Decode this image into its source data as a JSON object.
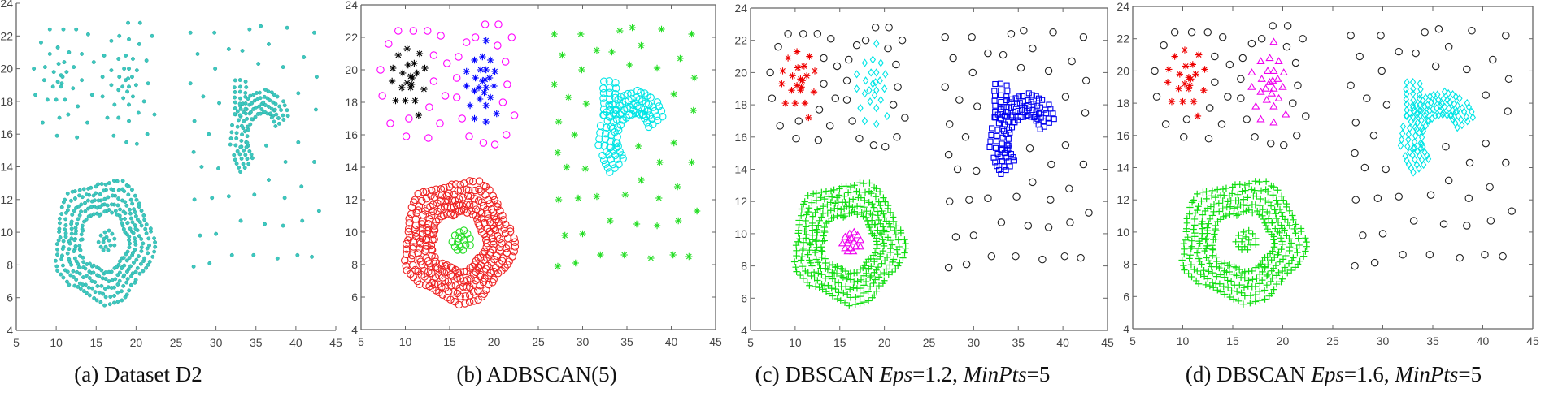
{
  "chart_data": [
    {
      "type": "scatter",
      "caption": {
        "prefix": "(a) Dataset D2"
      },
      "xlim": [
        5,
        45
      ],
      "ylim": [
        4,
        24
      ],
      "xticks": [
        5,
        10,
        15,
        20,
        25,
        30,
        35,
        40,
        45
      ],
      "yticks": [
        4,
        6,
        8,
        10,
        12,
        14,
        16,
        18,
        20,
        22,
        24
      ],
      "box": false,
      "styles": {
        "noise_left": {
          "marker": "dot",
          "color": "#3cc8bf"
        },
        "noise_right": {
          "marker": "dot",
          "color": "#3cc8bf"
        },
        "core_left": {
          "marker": "dot",
          "color": "#3cc8bf"
        },
        "core_right": {
          "marker": "dot",
          "color": "#3cc8bf"
        },
        "crescent": {
          "marker": "dot",
          "color": "#3cc8bf"
        },
        "ring": {
          "marker": "dot",
          "color": "#3cc8bf"
        },
        "ring_core": {
          "marker": "dot",
          "color": "#3cc8bf"
        }
      }
    },
    {
      "type": "scatter",
      "caption": {
        "prefix": "(b) ADBSCAN(5)"
      },
      "xlim": [
        5,
        45
      ],
      "ylim": [
        4,
        24
      ],
      "xticks": [
        5,
        10,
        15,
        20,
        25,
        30,
        35,
        40,
        45
      ],
      "yticks": [
        4,
        6,
        8,
        10,
        12,
        14,
        16,
        18,
        20,
        22,
        24
      ],
      "box": true,
      "styles": {
        "noise_left": {
          "marker": "circle",
          "color": "#ff00ff"
        },
        "noise_right": {
          "marker": "star",
          "color": "#22dd22"
        },
        "core_left": {
          "marker": "star",
          "color": "#000000"
        },
        "core_right": {
          "marker": "star",
          "color": "#0000ff"
        },
        "crescent": {
          "marker": "circle",
          "color": "#00e5e5"
        },
        "ring": {
          "marker": "circle",
          "color": "#ee2222"
        },
        "ring_core": {
          "marker": "circle",
          "color": "#22dd22"
        }
      }
    },
    {
      "type": "scatter",
      "caption": {
        "prefix": "(c) DBSCAN ",
        "eps_label": "Eps",
        "eps_value": "=1.2, ",
        "minpts_label": "MinPts",
        "minpts_value": "=5"
      },
      "xlim": [
        5,
        45
      ],
      "ylim": [
        4,
        24
      ],
      "xticks": [
        5,
        10,
        15,
        20,
        25,
        30,
        35,
        40,
        45
      ],
      "yticks": [
        4,
        6,
        8,
        10,
        12,
        14,
        16,
        18,
        20,
        22,
        24
      ],
      "box": true,
      "styles": {
        "noise_left": {
          "marker": "circle",
          "color": "#222222"
        },
        "noise_right": {
          "marker": "circle",
          "color": "#222222"
        },
        "core_left": {
          "marker": "star",
          "color": "#ee0000"
        },
        "core_right": {
          "marker": "diamond",
          "color": "#00e5e5"
        },
        "crescent": {
          "marker": "square",
          "color": "#0000ee"
        },
        "ring": {
          "marker": "plus",
          "color": "#11dd11"
        },
        "ring_core": {
          "marker": "triangle",
          "color": "#ee00ee"
        }
      }
    },
    {
      "type": "scatter",
      "caption": {
        "prefix": "(d) DBSCAN ",
        "eps_label": "Eps",
        "eps_value": "=1.6, ",
        "minpts_label": "MinPts",
        "minpts_value": "=5"
      },
      "xlim": [
        5,
        45
      ],
      "ylim": [
        4,
        24
      ],
      "xticks": [
        5,
        10,
        15,
        20,
        25,
        30,
        35,
        40,
        45
      ],
      "yticks": [
        4,
        6,
        8,
        10,
        12,
        14,
        16,
        18,
        20,
        22,
        24
      ],
      "box": true,
      "styles": {
        "noise_left": {
          "marker": "circle",
          "color": "#222222"
        },
        "noise_right": {
          "marker": "circle",
          "color": "#222222"
        },
        "core_left": {
          "marker": "star",
          "color": "#ee0000"
        },
        "core_right": {
          "marker": "triangle",
          "color": "#ee00ee"
        },
        "crescent": {
          "marker": "diamond",
          "color": "#00e5e5"
        },
        "ring": {
          "marker": "plus",
          "color": "#11dd11"
        },
        "ring_core": {
          "marker": "plus",
          "color": "#11dd11"
        }
      }
    }
  ],
  "groups": {
    "noise_left": {
      "points": [
        [
          9.2,
          22.4
        ],
        [
          10.9,
          22.4
        ],
        [
          12.5,
          22.4
        ],
        [
          14.0,
          22.1
        ],
        [
          8.1,
          21.6
        ],
        [
          13.2,
          20.9
        ],
        [
          7.2,
          20.0
        ],
        [
          14.7,
          20.4
        ],
        [
          16.0,
          20.8
        ],
        [
          13.2,
          19.3
        ],
        [
          15.8,
          19.5
        ],
        [
          7.4,
          18.4
        ],
        [
          14.5,
          18.4
        ],
        [
          15.8,
          18.3
        ],
        [
          12.7,
          17.7
        ],
        [
          8.3,
          16.7
        ],
        [
          10.4,
          17.0
        ],
        [
          13.9,
          16.7
        ],
        [
          10.1,
          15.9
        ],
        [
          12.6,
          15.8
        ],
        [
          16.4,
          17.0
        ],
        [
          17.2,
          15.9
        ],
        [
          18.8,
          15.5
        ],
        [
          20.1,
          15.4
        ],
        [
          21.4,
          16.0
        ],
        [
          22.3,
          17.2
        ],
        [
          21.0,
          18.0
        ],
        [
          21.5,
          19.1
        ],
        [
          21.3,
          20.5
        ],
        [
          20.4,
          21.5
        ],
        [
          22.0,
          22.0
        ],
        [
          20.5,
          22.8
        ],
        [
          19.0,
          22.8
        ],
        [
          17.9,
          22.0
        ],
        [
          16.9,
          21.7
        ]
      ]
    },
    "noise_right": {
      "points": [
        [
          26.8,
          22.2
        ],
        [
          29.8,
          22.2
        ],
        [
          34.2,
          22.4
        ],
        [
          35.6,
          22.6
        ],
        [
          38.9,
          22.5
        ],
        [
          42.3,
          22.2
        ],
        [
          27.7,
          20.9
        ],
        [
          31.6,
          21.2
        ],
        [
          33.3,
          21.1
        ],
        [
          36.6,
          21.5
        ],
        [
          41.0,
          20.7
        ],
        [
          29.9,
          20.0
        ],
        [
          35.3,
          20.3
        ],
        [
          38.4,
          20.1
        ],
        [
          42.6,
          19.5
        ],
        [
          26.8,
          19.1
        ],
        [
          28.4,
          18.3
        ],
        [
          30.4,
          17.9
        ],
        [
          40.3,
          18.5
        ],
        [
          42.5,
          17.5
        ],
        [
          27.3,
          16.8
        ],
        [
          29.1,
          16.0
        ],
        [
          36.3,
          15.3
        ],
        [
          40.3,
          15.5
        ],
        [
          27.2,
          14.9
        ],
        [
          28.2,
          14.0
        ],
        [
          30.3,
          13.9
        ],
        [
          38.7,
          14.3
        ],
        [
          42.3,
          14.3
        ],
        [
          36.6,
          13.2
        ],
        [
          40.7,
          12.8
        ],
        [
          27.3,
          12.0
        ],
        [
          29.5,
          12.1
        ],
        [
          31.6,
          12.2
        ],
        [
          34.8,
          12.3
        ],
        [
          38.6,
          12.1
        ],
        [
          42.9,
          11.3
        ],
        [
          33.1,
          10.7
        ],
        [
          36.1,
          10.5
        ],
        [
          38.4,
          10.4
        ],
        [
          40.8,
          10.7
        ],
        [
          28.0,
          9.8
        ],
        [
          30.0,
          9.9
        ],
        [
          32.0,
          8.6
        ],
        [
          34.7,
          8.6
        ],
        [
          37.7,
          8.4
        ],
        [
          40.2,
          8.6
        ],
        [
          42.0,
          8.5
        ],
        [
          27.2,
          7.9
        ],
        [
          29.2,
          8.1
        ]
      ]
    },
    "core_left": {
      "points": [
        [
          10.2,
          21.3
        ],
        [
          11.6,
          21.0
        ],
        [
          9.2,
          20.9
        ],
        [
          8.6,
          20.1
        ],
        [
          10.3,
          20.3
        ],
        [
          11.0,
          20.4
        ],
        [
          12.2,
          20.1
        ],
        [
          9.7,
          19.8
        ],
        [
          10.6,
          19.6
        ],
        [
          10.8,
          19.5
        ],
        [
          11.3,
          19.8
        ],
        [
          8.5,
          19.3
        ],
        [
          10.2,
          19.2
        ],
        [
          10.7,
          19.1
        ],
        [
          9.6,
          18.9
        ],
        [
          10.6,
          18.9
        ],
        [
          12.1,
          18.8
        ],
        [
          8.9,
          18.1
        ],
        [
          10.0,
          18.1
        ],
        [
          11.1,
          18.1
        ],
        [
          11.5,
          17.2
        ]
      ]
    },
    "core_right": {
      "points": [
        [
          19.1,
          21.8
        ],
        [
          17.8,
          20.6
        ],
        [
          18.7,
          20.8
        ],
        [
          19.6,
          20.6
        ],
        [
          16.9,
          19.9
        ],
        [
          18.5,
          20.0
        ],
        [
          19.1,
          20.0
        ],
        [
          20.1,
          19.9
        ],
        [
          17.9,
          19.5
        ],
        [
          18.7,
          19.3
        ],
        [
          19.0,
          19.4
        ],
        [
          19.5,
          19.5
        ],
        [
          16.9,
          19.0
        ],
        [
          18.3,
          18.9
        ],
        [
          19.1,
          18.9
        ],
        [
          20.0,
          19.0
        ],
        [
          17.8,
          18.7
        ],
        [
          18.9,
          18.6
        ],
        [
          18.4,
          18.2
        ],
        [
          19.6,
          18.3
        ],
        [
          17.3,
          17.8
        ],
        [
          19.1,
          17.8
        ],
        [
          20.3,
          17.3
        ],
        [
          17.8,
          17.0
        ],
        [
          19.1,
          16.8
        ]
      ]
    },
    "ring_core": {
      "points": [
        [
          16.1,
          10.0
        ],
        [
          16.6,
          10.1
        ],
        [
          17.0,
          9.9
        ],
        [
          15.6,
          9.8
        ],
        [
          16.3,
          9.7
        ],
        [
          15.3,
          9.4
        ],
        [
          15.9,
          9.4
        ],
        [
          16.6,
          9.5
        ],
        [
          17.3,
          9.6
        ],
        [
          15.6,
          9.1
        ],
        [
          16.2,
          9.1
        ],
        [
          16.8,
          9.2
        ],
        [
          17.3,
          9.2
        ],
        [
          15.9,
          8.9
        ],
        [
          16.5,
          8.9
        ],
        [
          16.0,
          9.6
        ]
      ]
    },
    "crescent": {
      "shape": "spine",
      "spines": [
        {
          "path": [
            [
              33.7,
              14.0
            ],
            [
              32.6,
              15.3
            ],
            [
              32.9,
              16.8
            ],
            [
              34.2,
              17.7
            ],
            [
              36.0,
              18.2
            ],
            [
              37.8,
              17.7
            ],
            [
              38.6,
              16.6
            ]
          ],
          "width": 1.5
        },
        {
          "path": [
            [
              33.0,
              17.2
            ],
            [
              33.0,
              19.6
            ]
          ],
          "width": 0.9
        }
      ],
      "spacing": 0.36
    },
    "ring": {
      "shape": "ellipse-ring",
      "center": [
        15.95,
        9.45
      ],
      "radii_outer": [
        6.0,
        3.65
      ],
      "inner_fraction": 0.5,
      "layers": 5
    }
  }
}
